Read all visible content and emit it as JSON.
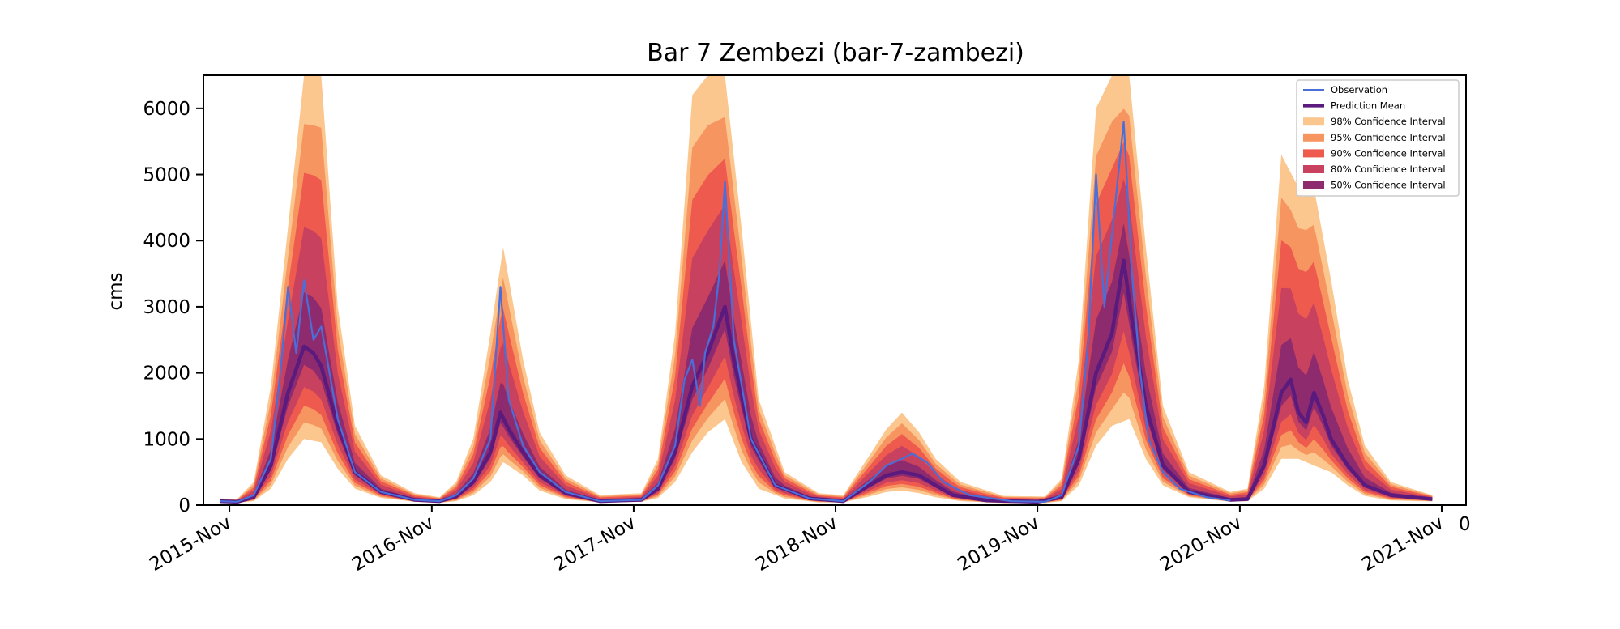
{
  "chart_data": {
    "type": "area",
    "title": "Bar 7 Zembezi (bar-7-zambezi)",
    "ylabel": "cms",
    "ylim": [
      0,
      6500
    ],
    "yticks": [
      0,
      1000,
      2000,
      3000,
      4000,
      5000,
      6000
    ],
    "xlim": [
      "2015-09-15",
      "2021-12-15"
    ],
    "xticks": [
      {
        "date": "2015-11-01",
        "label": "2015-Nov"
      },
      {
        "date": "2016-11-01",
        "label": "2016-Nov"
      },
      {
        "date": "2017-11-01",
        "label": "2017-Nov"
      },
      {
        "date": "2018-11-01",
        "label": "2018-Nov"
      },
      {
        "date": "2019-11-01",
        "label": "2019-Nov"
      },
      {
        "date": "2020-11-01",
        "label": "2020-Nov"
      },
      {
        "date": "2021-11-01",
        "label": "2021-Nov"
      }
    ],
    "corner_label": "0",
    "grid": false,
    "legend_position": "top-right",
    "colors": {
      "observation": "#4a6fd8",
      "prediction_mean": "#5a1a7e",
      "ci98": "#fcc68f",
      "ci95": "#f79560",
      "ci90": "#ef5a4f",
      "ci80": "#c8415e",
      "ci50": "#8e2b6e"
    },
    "legend": [
      {
        "label": "Observation",
        "kind": "line",
        "color": "#4a6fd8"
      },
      {
        "label": "Prediction Mean",
        "kind": "line",
        "color": "#5a1a7e"
      },
      {
        "label": "98% Confidence Interval",
        "kind": "patch",
        "color": "#fcc68f"
      },
      {
        "label": "95% Confidence Interval",
        "kind": "patch",
        "color": "#f79560"
      },
      {
        "label": "90% Confidence Interval",
        "kind": "patch",
        "color": "#ef5a4f"
      },
      {
        "label": "80% Confidence Interval",
        "kind": "patch",
        "color": "#c8415e"
      },
      {
        "label": "50% Confidence Interval",
        "kind": "patch",
        "color": "#8e2b6e"
      }
    ],
    "series": [
      {
        "name": "Observation",
        "x": [
          "2015-10-15",
          "2015-11-15",
          "2015-12-15",
          "2016-01-15",
          "2016-02-01",
          "2016-02-15",
          "2016-03-01",
          "2016-03-15",
          "2016-04-01",
          "2016-04-15",
          "2016-05-15",
          "2016-06-15",
          "2016-08-01",
          "2016-10-01",
          "2016-11-15",
          "2016-12-15",
          "2017-01-15",
          "2017-02-15",
          "2017-03-05",
          "2017-03-20",
          "2017-04-15",
          "2017-05-15",
          "2017-07-01",
          "2017-09-01",
          "2017-11-15",
          "2017-12-15",
          "2018-01-15",
          "2018-02-01",
          "2018-02-15",
          "2018-03-01",
          "2018-03-10",
          "2018-03-25",
          "2018-04-05",
          "2018-04-15",
          "2018-05-01",
          "2018-06-01",
          "2018-07-15",
          "2018-09-15",
          "2018-11-15",
          "2019-01-01",
          "2019-02-01",
          "2019-03-01",
          "2019-03-20",
          "2019-04-15",
          "2019-05-15",
          "2019-07-01",
          "2019-09-15",
          "2019-11-15",
          "2019-12-15",
          "2020-01-15",
          "2020-02-01",
          "2020-02-15",
          "2020-03-01",
          "2020-03-20",
          "2020-04-05",
          "2020-04-20",
          "2020-05-05",
          "2020-05-20",
          "2020-06-15",
          "2020-07-15",
          "2020-09-01",
          "2020-10-15"
        ],
        "values": [
          60,
          50,
          150,
          700,
          2000,
          3300,
          2300,
          3400,
          2500,
          2700,
          1300,
          500,
          200,
          80,
          60,
          150,
          400,
          1000,
          3300,
          1600,
          900,
          500,
          200,
          60,
          80,
          300,
          900,
          1900,
          2200,
          1500,
          2300,
          2700,
          3500,
          4900,
          2500,
          1000,
          300,
          100,
          60,
          350,
          600,
          700,
          780,
          650,
          350,
          150,
          60,
          50,
          150,
          900,
          2500,
          5000,
          3000,
          4500,
          5800,
          3500,
          2000,
          1000,
          500,
          250,
          120,
          70
        ]
      },
      {
        "name": "Prediction Mean",
        "x": [
          "2015-10-15",
          "2015-11-15",
          "2015-12-15",
          "2016-01-15",
          "2016-02-15",
          "2016-03-15",
          "2016-04-01",
          "2016-04-15",
          "2016-05-15",
          "2016-06-15",
          "2016-08-01",
          "2016-10-01",
          "2016-11-15",
          "2016-12-15",
          "2017-01-15",
          "2017-02-15",
          "2017-03-05",
          "2017-03-20",
          "2017-04-15",
          "2017-05-15",
          "2017-07-01",
          "2017-09-01",
          "2017-11-15",
          "2017-12-15",
          "2018-01-15",
          "2018-02-15",
          "2018-03-15",
          "2018-04-15",
          "2018-05-01",
          "2018-06-01",
          "2018-07-15",
          "2018-09-15",
          "2018-11-15",
          "2019-01-01",
          "2019-02-01",
          "2019-03-01",
          "2019-04-01",
          "2019-05-01",
          "2019-06-01",
          "2019-08-01",
          "2019-11-01",
          "2019-12-15",
          "2020-01-15",
          "2020-02-15",
          "2020-03-15",
          "2020-04-05",
          "2020-04-20",
          "2020-05-15",
          "2020-06-15",
          "2020-08-01",
          "2020-10-15",
          "2020-11-15",
          "2020-12-15",
          "2021-01-15",
          "2021-02-01",
          "2021-02-15",
          "2021-03-01",
          "2021-03-15",
          "2021-04-01",
          "2021-04-15",
          "2021-05-15",
          "2021-06-15",
          "2021-08-01",
          "2021-10-15"
        ],
        "values": [
          60,
          50,
          120,
          600,
          1700,
          2400,
          2300,
          2100,
          1200,
          500,
          200,
          80,
          60,
          130,
          350,
          800,
          1400,
          1150,
          800,
          450,
          180,
          60,
          80,
          250,
          800,
          1800,
          2300,
          3000,
          2200,
          1000,
          300,
          100,
          60,
          300,
          450,
          500,
          450,
          300,
          150,
          70,
          50,
          120,
          700,
          2000,
          2600,
          3700,
          2800,
          1500,
          600,
          200,
          80,
          90,
          600,
          1700,
          1900,
          1400,
          1250,
          1700,
          1350,
          1000,
          600,
          300,
          150,
          90
        ]
      },
      {
        "name": "98% Confidence Interval",
        "x": [
          "2015-10-15",
          "2015-11-15",
          "2015-12-15",
          "2016-01-15",
          "2016-02-15",
          "2016-03-15",
          "2016-04-15",
          "2016-05-15",
          "2016-06-15",
          "2016-08-01",
          "2016-10-01",
          "2016-11-15",
          "2016-12-15",
          "2017-01-15",
          "2017-02-15",
          "2017-03-10",
          "2017-04-15",
          "2017-05-15",
          "2017-07-01",
          "2017-09-01",
          "2017-11-15",
          "2017-12-15",
          "2018-01-15",
          "2018-02-15",
          "2018-03-15",
          "2018-04-15",
          "2018-05-15",
          "2018-06-15",
          "2018-08-01",
          "2018-10-01",
          "2018-11-15",
          "2019-01-01",
          "2019-02-01",
          "2019-03-01",
          "2019-04-01",
          "2019-05-01",
          "2019-06-15",
          "2019-09-01",
          "2019-11-15",
          "2019-12-15",
          "2020-01-15",
          "2020-02-15",
          "2020-03-15",
          "2020-04-15",
          "2020-05-15",
          "2020-06-15",
          "2020-08-01",
          "2020-10-15",
          "2020-11-15",
          "2020-12-15",
          "2021-01-15",
          "2021-02-15",
          "2021-03-15",
          "2021-04-15",
          "2021-05-15",
          "2021-06-15",
          "2021-08-01",
          "2021-10-15"
        ],
        "lower": [
          40,
          35,
          60,
          250,
          700,
          1000,
          950,
          550,
          250,
          110,
          50,
          35,
          60,
          150,
          350,
          650,
          450,
          220,
          90,
          40,
          50,
          110,
          350,
          800,
          1100,
          1300,
          650,
          250,
          100,
          40,
          40,
          130,
          200,
          220,
          180,
          120,
          60,
          30,
          30,
          60,
          300,
          900,
          1200,
          1300,
          700,
          300,
          120,
          50,
          60,
          250,
          700,
          700,
          600,
          500,
          300,
          140,
          70,
          55
        ],
        "upper": [
          100,
          90,
          350,
          1800,
          4200,
          6500,
          6500,
          3000,
          1200,
          450,
          180,
          120,
          350,
          1000,
          2600,
          3900,
          2200,
          1100,
          450,
          150,
          180,
          700,
          2600,
          6200,
          6500,
          6500,
          4200,
          1600,
          500,
          180,
          150,
          750,
          1150,
          1400,
          1100,
          700,
          350,
          140,
          130,
          400,
          2200,
          6000,
          6500,
          6500,
          3900,
          1500,
          500,
          200,
          250,
          1800,
          5300,
          4800,
          4800,
          3400,
          1900,
          900,
          350,
          150
        ]
      }
    ]
  }
}
